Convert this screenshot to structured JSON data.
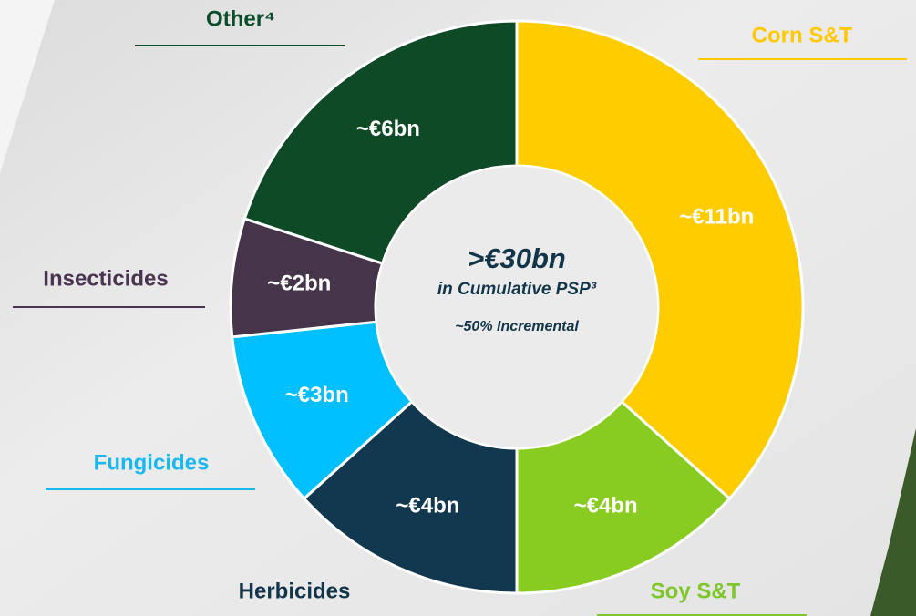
{
  "chart_data": {
    "type": "donut",
    "categories": [
      "Corn S&T",
      "Soy S&T",
      "Herbicides",
      "Fungicides",
      "Insecticides",
      "Other⁴"
    ],
    "values": [
      11,
      4,
      4,
      3,
      2,
      6
    ],
    "value_labels": [
      "~€11bn",
      "~€4bn",
      "~€4bn",
      "~€3bn",
      "~€2bn",
      "~€6bn"
    ],
    "colors": [
      "#ffcc00",
      "#88cc22",
      "#12384f",
      "#00bfff",
      "#45344a",
      "#0d4a25"
    ],
    "label_colors": [
      "#ffc800",
      "#7ec62a",
      "#12354a",
      "#1ab8f0",
      "#4a3550",
      "#0b4d2a"
    ],
    "center_title": ">€30bn",
    "center_subtitle": "in Cumulative PSP³",
    "center_note": "~50% Incremental"
  }
}
